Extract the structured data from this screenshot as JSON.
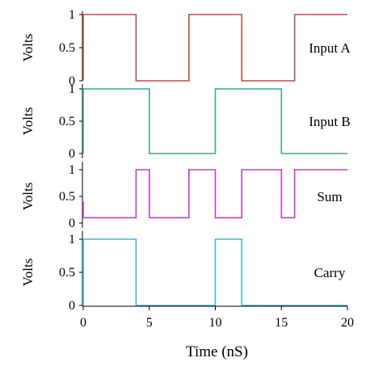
{
  "chart_data": {
    "type": "line",
    "subtype": "stacked-step",
    "xlabel": "Time (nS)",
    "x_ticks": [
      "0",
      "5",
      "10",
      "15",
      "20"
    ],
    "xlim": [
      0,
      20
    ],
    "grid": false,
    "panels": [
      {
        "name": "Input A",
        "ylabel": "Volts",
        "y_ticks": [
          "0",
          "0.5",
          "1"
        ],
        "ylim": [
          0,
          1
        ],
        "color": "#b05050",
        "points": [
          [
            0,
            0
          ],
          [
            0,
            1
          ],
          [
            4,
            1
          ],
          [
            4,
            0
          ],
          [
            8,
            0
          ],
          [
            8,
            1
          ],
          [
            12,
            1
          ],
          [
            12,
            0
          ],
          [
            16,
            0
          ],
          [
            16,
            1
          ],
          [
            20,
            1
          ]
        ]
      },
      {
        "name": "Input B",
        "ylabel": "Volts",
        "y_ticks": [
          "0",
          "0.5",
          "1"
        ],
        "ylim": [
          0,
          1
        ],
        "color": "#3aaa8c",
        "points": [
          [
            0,
            0
          ],
          [
            0,
            1
          ],
          [
            5,
            1
          ],
          [
            5,
            0
          ],
          [
            10,
            0
          ],
          [
            10,
            1
          ],
          [
            15,
            1
          ],
          [
            15,
            0
          ],
          [
            20,
            0
          ]
        ]
      },
      {
        "name": "Sum",
        "ylabel": "Volts",
        "y_ticks": [
          "0",
          "0.5",
          "1"
        ],
        "ylim": [
          0,
          1
        ],
        "color": "#c040c0",
        "points": [
          [
            0,
            0.4
          ],
          [
            0,
            0.1
          ],
          [
            4,
            0.1
          ],
          [
            4,
            1
          ],
          [
            5,
            1
          ],
          [
            5,
            0.1
          ],
          [
            8,
            0.1
          ],
          [
            8,
            1
          ],
          [
            10,
            1
          ],
          [
            10,
            0.1
          ],
          [
            12,
            0.1
          ],
          [
            12,
            1
          ],
          [
            15,
            1
          ],
          [
            15,
            0.1
          ],
          [
            16,
            0.1
          ],
          [
            16,
            1
          ],
          [
            20,
            1
          ]
        ]
      },
      {
        "name": "Carry",
        "ylabel": "Volts",
        "y_ticks": [
          "0",
          "0.5",
          "1"
        ],
        "ylim": [
          0,
          1
        ],
        "color": "#30c0d0",
        "points": [
          [
            0,
            0
          ],
          [
            0,
            1
          ],
          [
            4,
            1
          ],
          [
            4,
            0
          ],
          [
            10,
            0
          ],
          [
            10,
            1
          ],
          [
            12,
            1
          ],
          [
            12,
            0
          ],
          [
            20,
            0
          ]
        ]
      }
    ]
  }
}
